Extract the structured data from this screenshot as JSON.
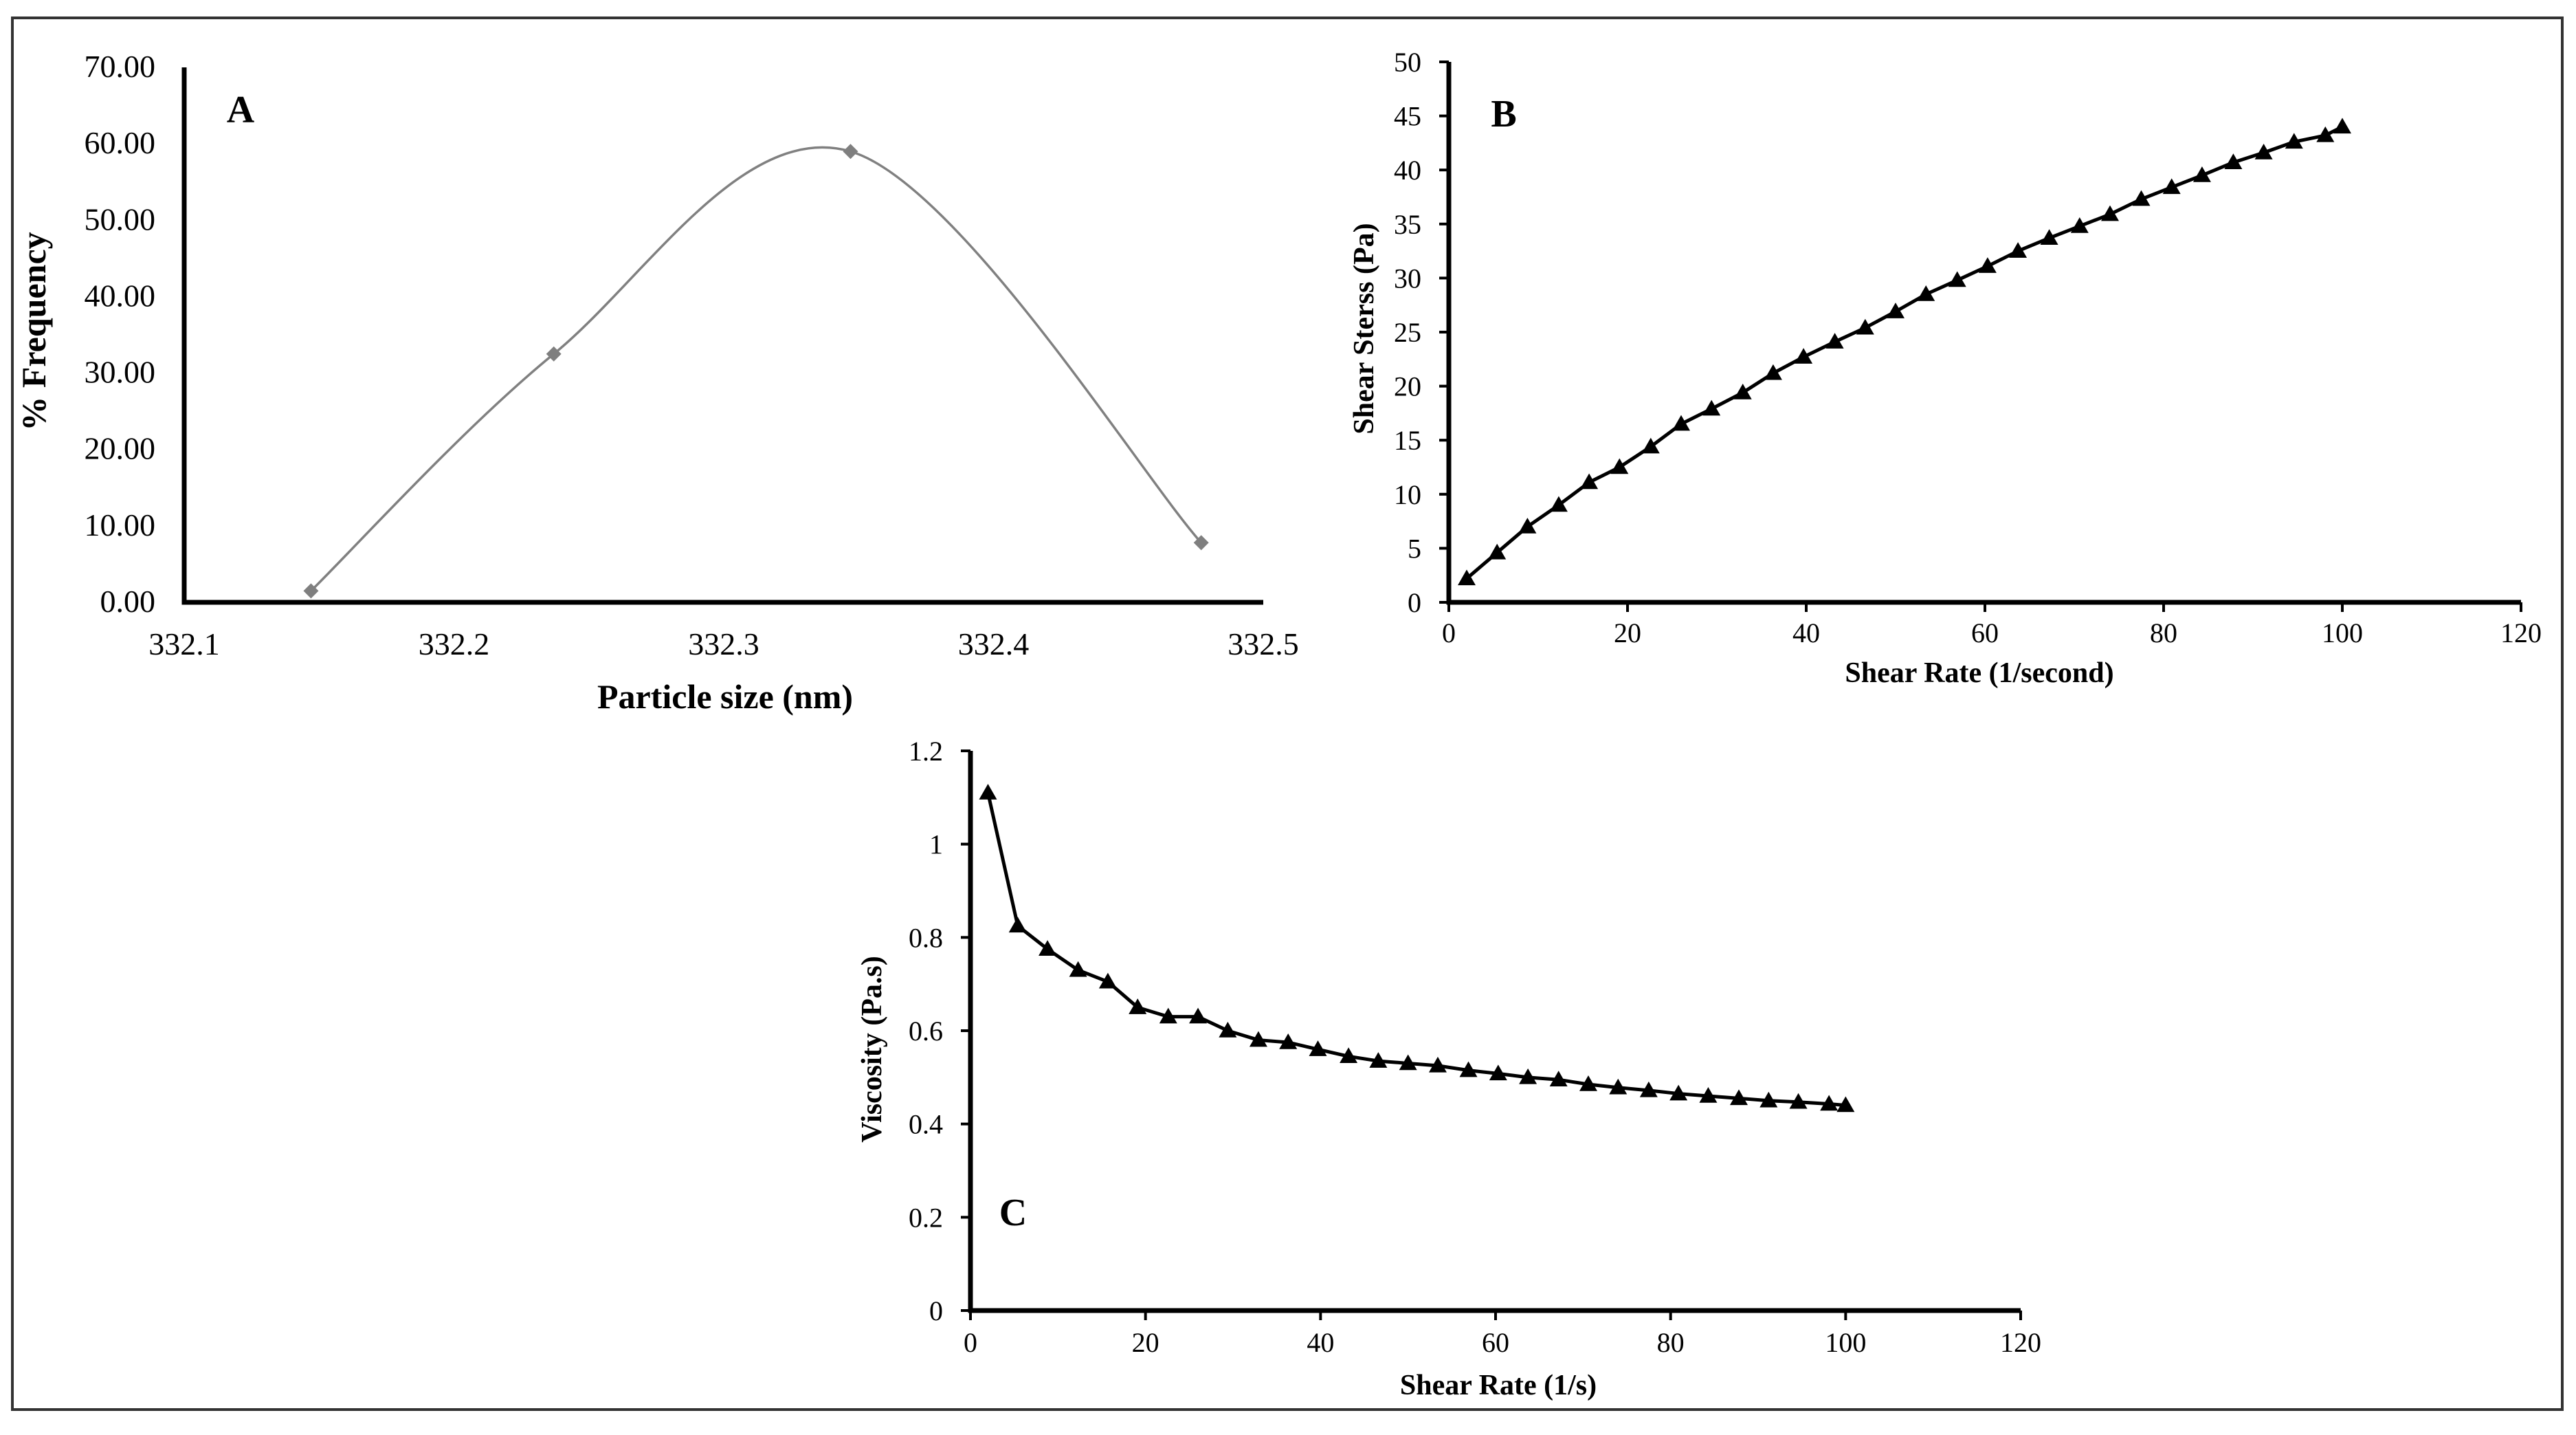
{
  "chart_data": [
    {
      "panel_label": "A",
      "type": "line",
      "smooth": true,
      "marker": "diamond",
      "line_color": "#808080",
      "marker_color": "#7f7f7f",
      "xlabel": "Particle size (nm)",
      "ylabel": "% Frequency",
      "xlim": [
        332.1,
        332.5
      ],
      "ylim": [
        0,
        70
      ],
      "xticks": [
        "332.1",
        "332.2",
        "332.3",
        "332.4",
        "332.5"
      ],
      "yticks": [
        "0.00",
        "10.00",
        "20.00",
        "30.00",
        "40.00",
        "50.00",
        "60.00",
        "70.00"
      ],
      "x": [
        332.147,
        332.237,
        332.347,
        332.477
      ],
      "y": [
        1.5,
        32.5,
        59.0,
        7.8
      ]
    },
    {
      "panel_label": "B",
      "type": "line",
      "marker": "triangle",
      "line_color": "#000000",
      "xlabel": "Shear Rate (1/second)",
      "ylabel": "Shear Sterss (Pa)",
      "xlim": [
        0,
        120
      ],
      "ylim": [
        0,
        50
      ],
      "xticks": [
        "0",
        "20",
        "40",
        "60",
        "80",
        "100",
        "120"
      ],
      "yticks": [
        "0",
        "5",
        "10",
        "15",
        "20",
        "25",
        "30",
        "35",
        "40",
        "45",
        "50"
      ],
      "x": [
        2,
        5.4,
        8.8,
        12.3,
        15.7,
        19.1,
        22.6,
        26,
        29.4,
        32.9,
        36.3,
        39.7,
        43.2,
        46.6,
        50,
        53.4,
        56.9,
        60.3,
        63.7,
        67.2,
        70.6,
        74,
        77.5,
        80.9,
        84.3,
        87.8,
        91.2,
        94.6,
        98.1,
        100
      ],
      "y": [
        2.2,
        4.6,
        7.0,
        9.0,
        11.1,
        12.5,
        14.4,
        16.5,
        17.9,
        19.4,
        21.2,
        22.7,
        24.1,
        25.4,
        26.9,
        28.5,
        29.8,
        31.1,
        32.5,
        33.7,
        34.8,
        35.9,
        37.3,
        38.4,
        39.5,
        40.7,
        41.6,
        42.6,
        43.2,
        44.0
      ]
    },
    {
      "panel_label": "C",
      "type": "line",
      "marker": "triangle",
      "line_color": "#000000",
      "xlabel": "Shear Rate (1/s)",
      "ylabel": "Viscosity (Pa.s)",
      "xlim": [
        0,
        120
      ],
      "ylim": [
        0,
        1.2
      ],
      "xticks": [
        "0",
        "20",
        "40",
        "60",
        "80",
        "100",
        "120"
      ],
      "yticks": [
        "0",
        "0.2",
        "0.4",
        "0.6",
        "0.8",
        "1",
        "1.2"
      ],
      "x": [
        2,
        5.4,
        8.8,
        12.3,
        15.7,
        19.1,
        22.6,
        26,
        29.4,
        32.9,
        36.3,
        39.7,
        43.2,
        46.6,
        50,
        53.4,
        56.9,
        60.3,
        63.7,
        67.2,
        70.6,
        74,
        77.5,
        80.9,
        84.3,
        87.8,
        91.2,
        94.6,
        98.1,
        100
      ],
      "y": [
        1.11,
        0.825,
        0.775,
        0.73,
        0.705,
        0.65,
        0.63,
        0.63,
        0.6,
        0.58,
        0.575,
        0.56,
        0.545,
        0.535,
        0.53,
        0.525,
        0.515,
        0.508,
        0.5,
        0.495,
        0.485,
        0.478,
        0.472,
        0.465,
        0.46,
        0.455,
        0.45,
        0.447,
        0.443,
        0.44
      ]
    }
  ]
}
